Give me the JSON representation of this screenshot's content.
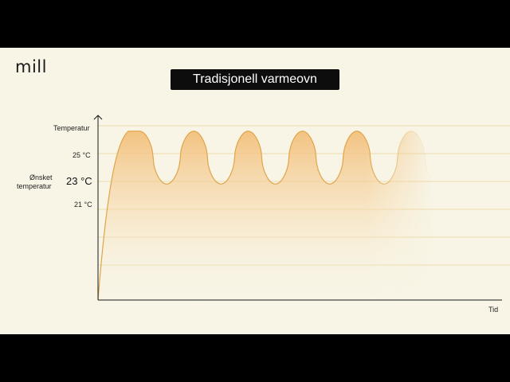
{
  "brand": {
    "logo_text": "mill"
  },
  "chart_data": {
    "type": "line",
    "title": "Tradisjonell varmeovn",
    "ylabel": "Temperatur",
    "xlabel": "Tid",
    "y_ticks": [
      {
        "value": 25,
        "label": "25 °C"
      },
      {
        "value": 21,
        "label": "21 °C"
      }
    ],
    "target": {
      "value": 23,
      "label": "23 °C",
      "caption_line1": "Ønsket",
      "caption_line2": "temperatur"
    },
    "ylim": [
      12.2,
      26.2
    ],
    "xlim": [
      0,
      100
    ],
    "cycles": 6,
    "peak": 25,
    "trough": 21,
    "baseline": 12.2,
    "grid": true,
    "fill_color": "#f3c78a",
    "line_color": "#e0a44a"
  }
}
